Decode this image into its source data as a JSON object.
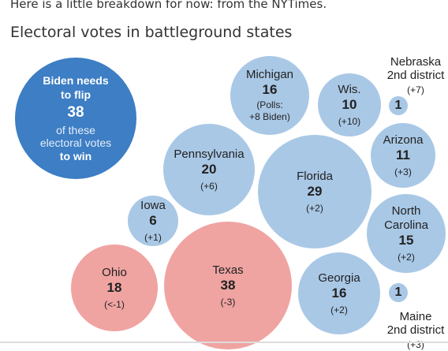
{
  "intro_text": "Here is a little breakdown for now: from the NYTimes.",
  "colors": {
    "summary_blue": "#3d7ec4",
    "state_blue": "#a9c8e6",
    "state_red": "#efa4a2"
  },
  "chart_data": {
    "type": "bubble",
    "title": "Electoral votes in battleground states",
    "summary": {
      "head": "Biden needs\nto flip",
      "number": "38",
      "middle": "of these\nelectoral votes",
      "tail": "to win"
    },
    "series": [
      {
        "name": "Michigan",
        "votes": 16,
        "note": "(Polls:\n+8 Biden)",
        "lean": "blue"
      },
      {
        "name": "Wis.",
        "votes": 10,
        "change": "(+10)",
        "lean": "blue"
      },
      {
        "name": "Nebraska\n2nd district",
        "votes": 1,
        "change": "(+7)",
        "lean": "blue"
      },
      {
        "name": "Arizona",
        "votes": 11,
        "change": "(+3)",
        "lean": "blue"
      },
      {
        "name": "Pennsylvania",
        "votes": 20,
        "change": "(+6)",
        "lean": "blue"
      },
      {
        "name": "Florida",
        "votes": 29,
        "change": "(+2)",
        "lean": "blue"
      },
      {
        "name": "Iowa",
        "votes": 6,
        "change": "(+1)",
        "lean": "blue"
      },
      {
        "name": "North\nCarolina",
        "votes": 15,
        "change": "(+2)",
        "lean": "blue"
      },
      {
        "name": "Ohio",
        "votes": 18,
        "change": "(<-1)",
        "lean": "red"
      },
      {
        "name": "Texas",
        "votes": 38,
        "change": "(-3)",
        "lean": "red"
      },
      {
        "name": "Georgia",
        "votes": 16,
        "change": "(+2)",
        "lean": "blue"
      },
      {
        "name": "Maine\n2nd district",
        "votes": 1,
        "change": "(+3)",
        "lean": "blue"
      }
    ]
  }
}
